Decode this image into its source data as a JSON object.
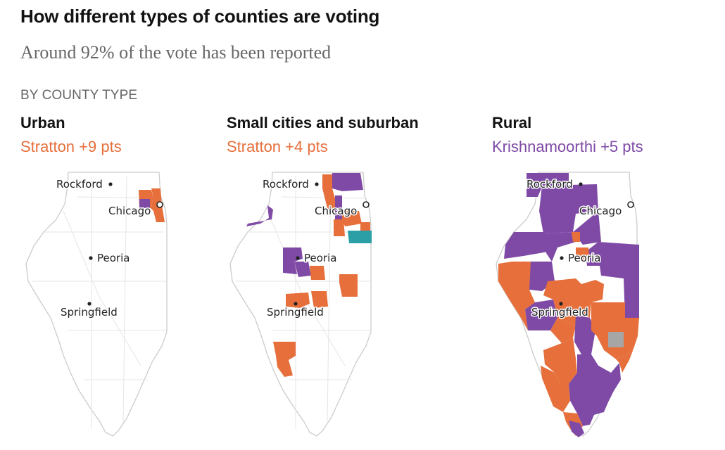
{
  "header": {
    "title": "How different types of counties are voting",
    "subtitle": "Around 92% of the vote has been reported",
    "section_label": "BY COUNTY TYPE"
  },
  "colors": {
    "stratton": "#e66f3c",
    "krishnamoorthi": "#7f4aa6",
    "other_candidate": "#2b9ea6",
    "no_result": "#a6a6a6",
    "outline": "#cccccc",
    "roads": "#e3e3e3"
  },
  "panels": [
    {
      "title": "Urban",
      "result": "Stratton +9 pts",
      "leader": "stratton",
      "cities": [
        "Rockford",
        "Chicago",
        "Peoria",
        "Springfield"
      ]
    },
    {
      "title": "Small cities and suburban",
      "result": "Stratton +4 pts",
      "leader": "stratton",
      "cities": [
        "Rockford",
        "Chicago",
        "Peoria",
        "Springfield"
      ]
    },
    {
      "title": "Rural",
      "result": "Krishnamoorthi +5 pts",
      "leader": "krishnamoorthi",
      "cities": [
        "Rockford",
        "Chicago",
        "Peoria",
        "Springfield"
      ]
    }
  ]
}
